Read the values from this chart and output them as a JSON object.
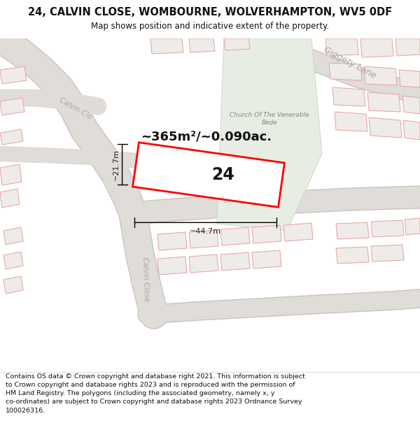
{
  "title_line1": "24, CALVIN CLOSE, WOMBOURNE, WOLVERHAMPTON, WV5 0DF",
  "title_line2": "Map shows position and indicative extent of the property.",
  "footer_wrapped": "Contains OS data © Crown copyright and database right 2021. This information is subject\nto Crown copyright and database rights 2023 and is reproduced with the permission of\nHM Land Registry. The polygons (including the associated geometry, namely x, y\nco-ordinates) are subject to Crown copyright and database rights 2023 Ordnance Survey\n100026316.",
  "map_bg": "#f7f6f4",
  "footer_bg": "#ffffff",
  "area_text": "~365m²/~0.090ac.",
  "label_24": "24",
  "dim_width": "~44.7m",
  "dim_height": "~21.7m",
  "church_label": "Church Of The Venerable\nBede",
  "street_calvin_close": "Calvin Close",
  "street_calvin_clo": "Calvin Clo",
  "giggety_label": "Giggety Lane",
  "road_color": "#e0dcd8",
  "road_outline": "#c8c4c0",
  "building_fill": "#eeebe8",
  "building_outline_red": "#e8a0a0",
  "building_outline_grey": "#c0bcb8",
  "green_fill": "#e8ede4",
  "green_outline": "#d0d8cc",
  "property_fill": "#ffffff",
  "property_outline": "#ff0000",
  "dim_color": "#222222",
  "street_color": "#aaa8a5",
  "church_color": "#888580",
  "title_color": "#111111",
  "footer_color": "#111111"
}
